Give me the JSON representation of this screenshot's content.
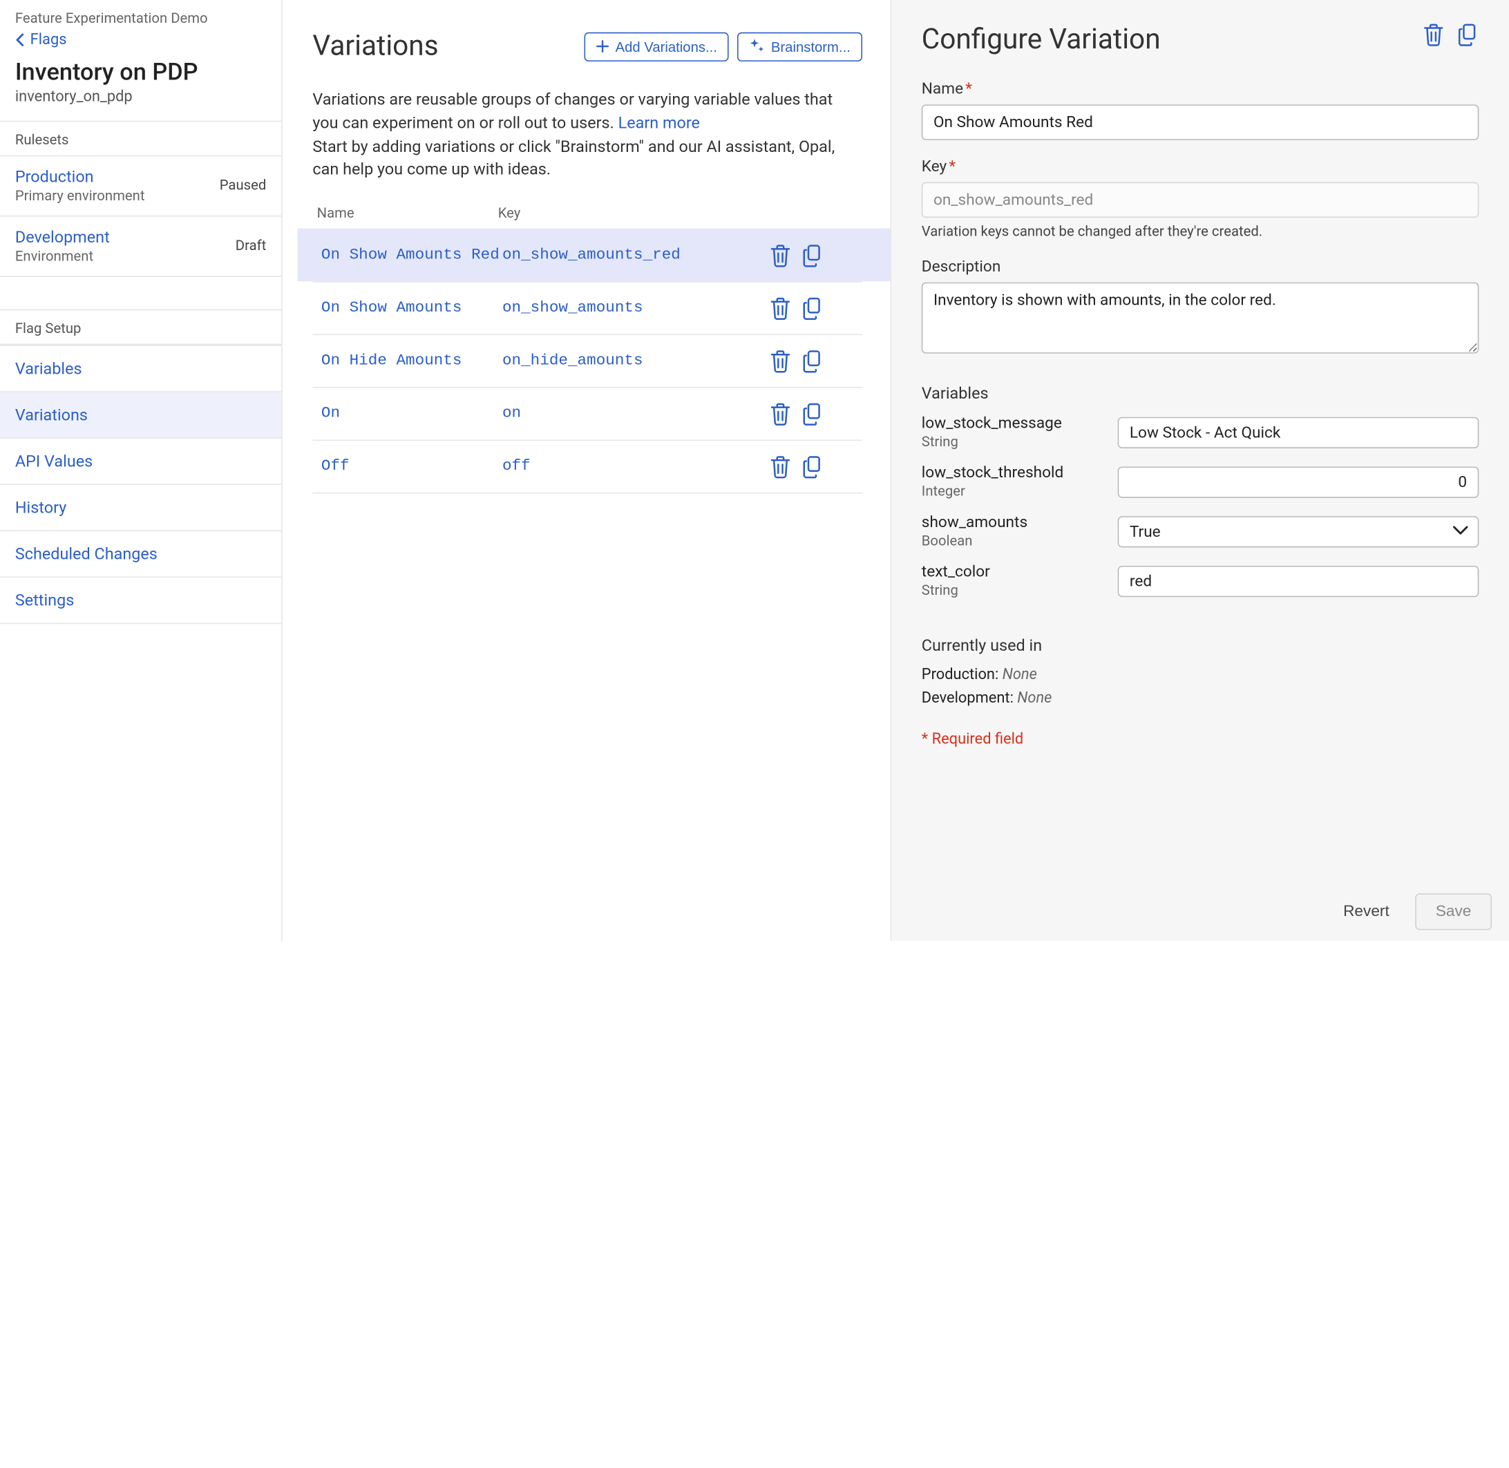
{
  "sidebar": {
    "demo_label": "Feature Experimentation Demo",
    "back_label": "Flags",
    "flag_title": "Inventory on PDP",
    "flag_key": "inventory_on_pdp",
    "rulesets_label": "Rulesets",
    "rulesets": [
      {
        "name": "Production",
        "sub": "Primary environment",
        "status": "Paused"
      },
      {
        "name": "Development",
        "sub": "Environment",
        "status": "Draft"
      }
    ],
    "flag_setup_label": "Flag Setup",
    "nav": [
      {
        "label": "Variables",
        "active": false
      },
      {
        "label": "Variations",
        "active": true
      },
      {
        "label": "API Values",
        "active": false
      },
      {
        "label": "History",
        "active": false
      },
      {
        "label": "Scheduled Changes",
        "active": false
      },
      {
        "label": "Settings",
        "active": false
      }
    ]
  },
  "main": {
    "title": "Variations",
    "add_button": "Add Variations...",
    "brainstorm_button": "Brainstorm...",
    "desc_line1": "Variations are reusable groups of changes or varying variable values that you can experiment on or roll out to users. ",
    "learn_more": "Learn more",
    "desc_line2": "Start by adding variations or click \"Brainstorm\" and our AI assistant, Opal, can help you come up with ideas.",
    "col_name": "Name",
    "col_key": "Key",
    "rows": [
      {
        "name": "On Show Amounts Red",
        "key": "on_show_amounts_red",
        "selected": true
      },
      {
        "name": "On Show Amounts",
        "key": "on_show_amounts",
        "selected": false
      },
      {
        "name": "On Hide Amounts",
        "key": "on_hide_amounts",
        "selected": false
      },
      {
        "name": "On",
        "key": "on",
        "selected": false
      },
      {
        "name": "Off",
        "key": "off",
        "selected": false
      }
    ]
  },
  "panel": {
    "title": "Configure Variation",
    "name_label": "Name",
    "name_value": "On Show Amounts Red",
    "key_label": "Key",
    "key_value": "on_show_amounts_red",
    "key_helper": "Variation keys cannot be changed after they're created.",
    "desc_label": "Description",
    "desc_value": "Inventory is shown with amounts, in the color red.",
    "variables_label": "Variables",
    "variables": [
      {
        "name": "low_stock_message",
        "type": "String",
        "control": "text",
        "value": "Low Stock - Act Quick"
      },
      {
        "name": "low_stock_threshold",
        "type": "Integer",
        "control": "number",
        "value": "0"
      },
      {
        "name": "show_amounts",
        "type": "Boolean",
        "control": "select",
        "value": "True"
      },
      {
        "name": "text_color",
        "type": "String",
        "control": "text",
        "value": "red"
      }
    ],
    "used_label": "Currently used in",
    "used": [
      {
        "env": "Production:",
        "value": "None"
      },
      {
        "env": "Development:",
        "value": "None"
      }
    ],
    "required_note": "* Required field",
    "revert": "Revert",
    "save": "Save"
  },
  "colors": {
    "link": "#2b5ecb",
    "selected_bg": "#e4e7fa",
    "border": "#e5e5e5",
    "panel_bg": "#f6f6f7",
    "danger": "#d9301a"
  }
}
